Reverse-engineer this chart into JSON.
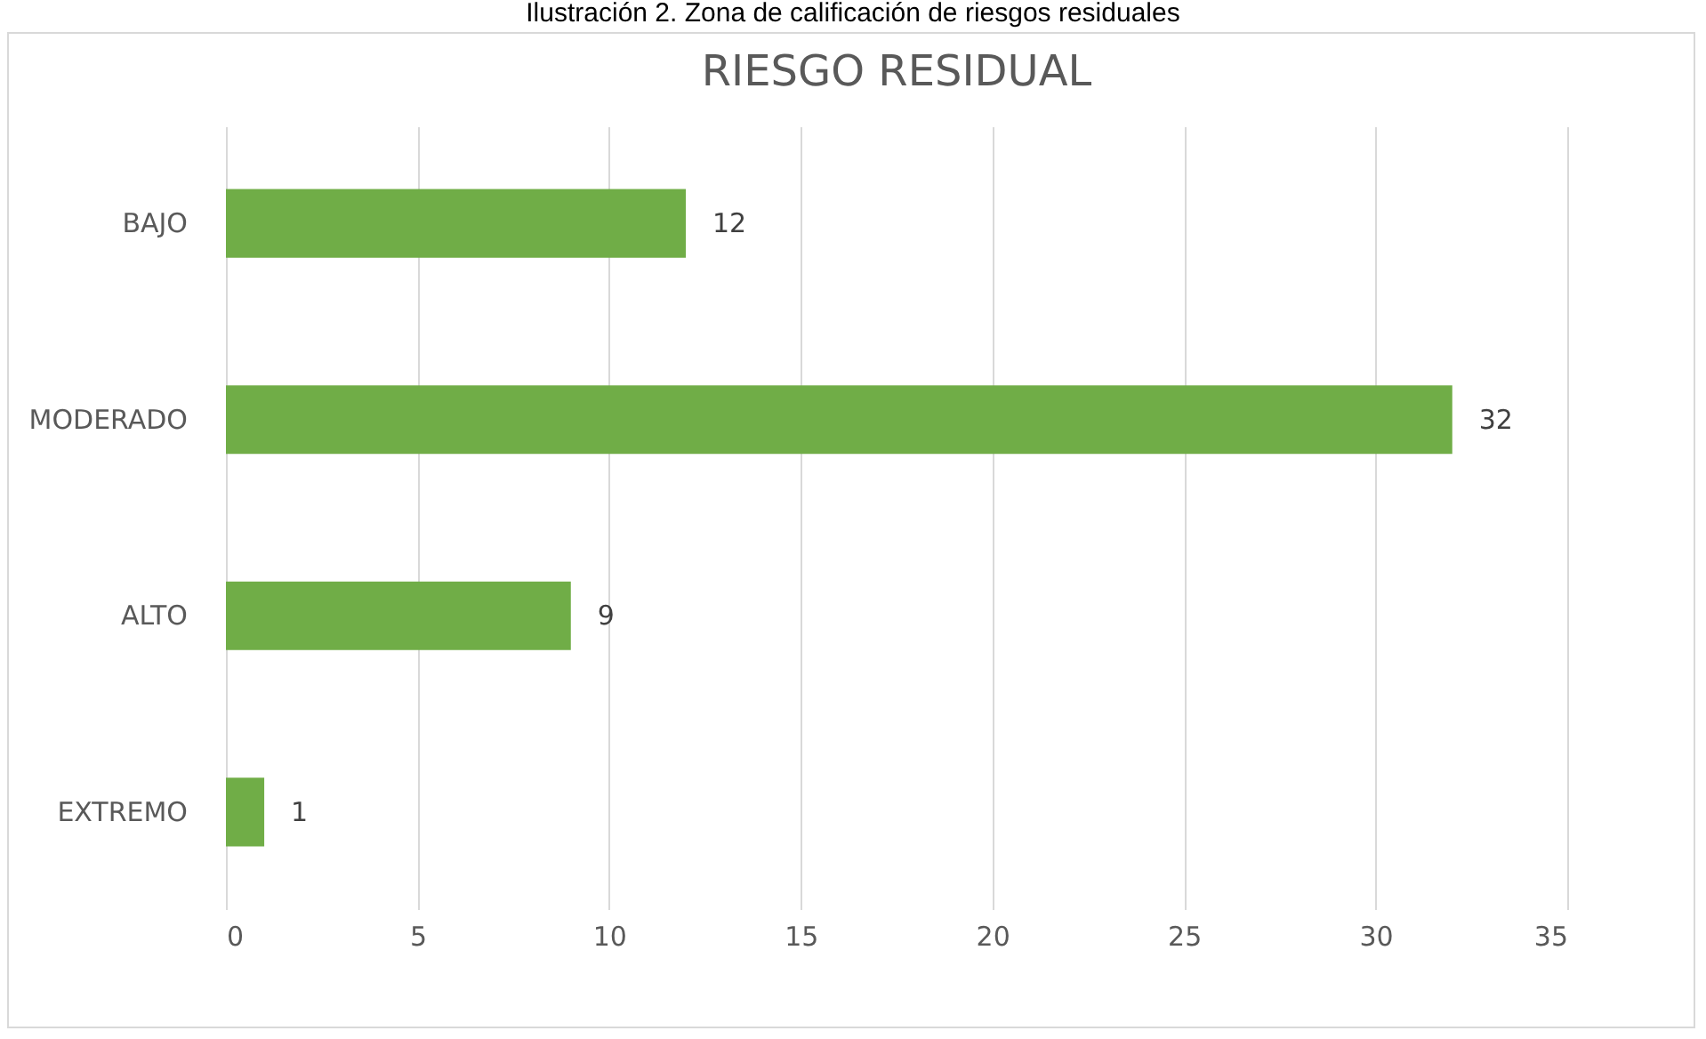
{
  "chart_data": {
    "type": "bar",
    "orientation": "horizontal",
    "title": "RIESGO RESIDUAL",
    "annotations": [
      "Ilustración 2. Zona de calificación de riesgos residuales"
    ],
    "categories": [
      "BAJO",
      "MODERADO",
      "ALTO",
      "EXTREMO"
    ],
    "values": [
      12,
      32,
      9,
      1
    ],
    "color": "#70ad47",
    "xlim": [
      0,
      35
    ],
    "xticks": [
      0,
      5,
      10,
      15,
      20,
      25,
      30,
      35
    ],
    "grid": "x",
    "data_labels": true
  }
}
